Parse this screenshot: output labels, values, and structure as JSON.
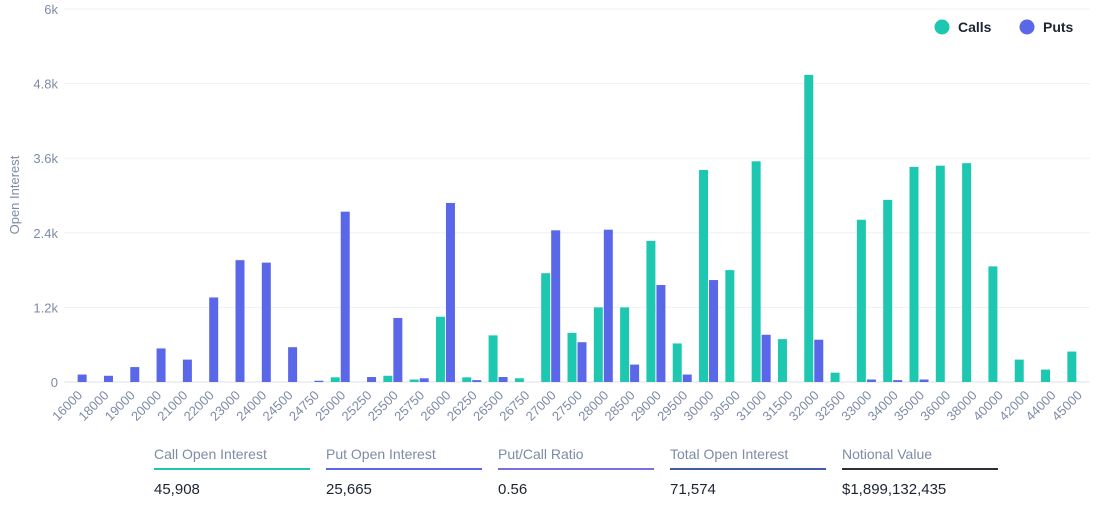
{
  "chart_data": {
    "type": "bar",
    "ylabel": "Open Interest",
    "ylim": [
      0,
      6000
    ],
    "yticks": [
      "0",
      "1.2k",
      "2.4k",
      "3.6k",
      "4.8k",
      "6k"
    ],
    "ytick_values": [
      0,
      1200,
      2400,
      3600,
      4800,
      6000
    ],
    "grid": true,
    "legend_position": "top-right",
    "categories": [
      "16000",
      "18000",
      "19000",
      "20000",
      "21000",
      "22000",
      "23000",
      "24000",
      "24500",
      "24750",
      "25000",
      "25250",
      "25500",
      "25750",
      "26000",
      "26250",
      "26500",
      "26750",
      "27000",
      "27500",
      "28000",
      "28500",
      "29000",
      "29500",
      "30000",
      "30500",
      "31000",
      "31500",
      "32000",
      "32500",
      "33000",
      "34000",
      "35000",
      "36000",
      "38000",
      "40000",
      "42000",
      "44000",
      "45000"
    ],
    "series": [
      {
        "name": "Calls",
        "color": "#1ec8b0",
        "values": [
          0,
          0,
          0,
          0,
          0,
          0,
          0,
          0,
          0,
          0,
          75,
          0,
          100,
          40,
          1050,
          75,
          750,
          60,
          1750,
          790,
          1200,
          1200,
          2270,
          620,
          3410,
          1800,
          3550,
          690,
          4940,
          150,
          2610,
          2930,
          3460,
          3480,
          3520,
          1860,
          360,
          200,
          490
        ]
      },
      {
        "name": "Puts",
        "color": "#5a67e8",
        "values": [
          120,
          100,
          240,
          540,
          360,
          1360,
          1960,
          1920,
          560,
          20,
          2740,
          80,
          1030,
          60,
          2880,
          30,
          80,
          0,
          2440,
          640,
          2450,
          280,
          1560,
          120,
          1640,
          0,
          760,
          0,
          680,
          0,
          40,
          30,
          40,
          0,
          0,
          0,
          0,
          0,
          0
        ]
      }
    ]
  },
  "stats": [
    {
      "label": "Call Open Interest",
      "value": "45,908",
      "color": "#1ec8b0"
    },
    {
      "label": "Put Open Interest",
      "value": "25,665",
      "color": "#5a67e8"
    },
    {
      "label": "Put/Call Ratio",
      "value": "0.56",
      "color": "#7a6fe0"
    },
    {
      "label": "Total Open Interest",
      "value": "71,574",
      "color": "#3f5ba9"
    },
    {
      "label": "Notional Value",
      "value": "$1,899,132,435",
      "color": "#2d2f36"
    }
  ]
}
